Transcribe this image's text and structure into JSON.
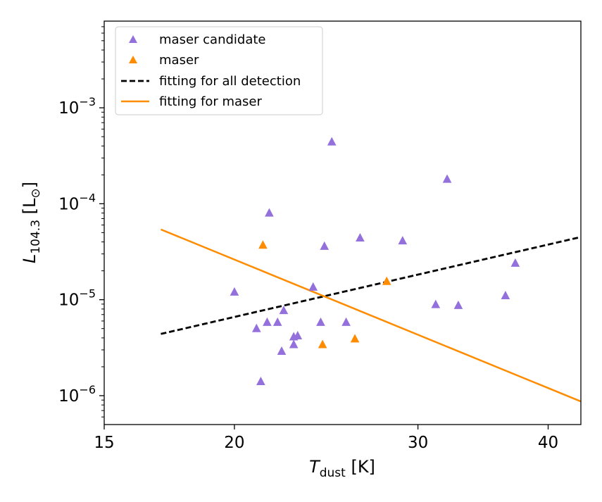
{
  "chart_data": {
    "type": "scatter",
    "x_scale": "log",
    "y_scale": "log",
    "xlim": [
      15,
      43
    ],
    "ylim": [
      5e-07,
      0.008
    ],
    "xlabel": {
      "main": "T",
      "sub": "dust",
      "unit": " [K]"
    },
    "ylabel": {
      "main": "L",
      "sub": "104.3",
      "unit_open": " [L",
      "unit_sub": "⊙",
      "unit_close": "]"
    },
    "x_ticks": [
      {
        "value": 15,
        "label": "15"
      },
      {
        "value": 20,
        "label": "20"
      },
      {
        "value": 30,
        "label": "30"
      },
      {
        "value": 40,
        "label": "40"
      }
    ],
    "y_ticks": [
      {
        "value": 1e-06,
        "base": "10",
        "exp": "−6"
      },
      {
        "value": 1e-05,
        "base": "10",
        "exp": "−5"
      },
      {
        "value": 0.0001,
        "base": "10",
        "exp": "−4"
      },
      {
        "value": 0.001,
        "base": "10",
        "exp": "−3"
      }
    ],
    "series": [
      {
        "name": "maser candidate",
        "kind": "scatter",
        "color": "#9370db",
        "marker": "triangle",
        "points": [
          [
            20.0,
            1.2e-05
          ],
          [
            21.0,
            5e-06
          ],
          [
            21.2,
            1.4e-06
          ],
          [
            21.5,
            5.8e-06
          ],
          [
            21.6,
            8e-05
          ],
          [
            22.0,
            5.8e-06
          ],
          [
            22.2,
            2.9e-06
          ],
          [
            22.3,
            7.7e-06
          ],
          [
            22.8,
            3.4e-06
          ],
          [
            22.8,
            4.1e-06
          ],
          [
            23.0,
            4.2e-06
          ],
          [
            23.8,
            1.35e-05
          ],
          [
            24.2,
            5.8e-06
          ],
          [
            24.4,
            3.6e-05
          ],
          [
            24.8,
            0.00044
          ],
          [
            25.6,
            5.8e-06
          ],
          [
            26.4,
            4.4e-05
          ],
          [
            29.0,
            4.1e-05
          ],
          [
            31.2,
            8.9e-06
          ],
          [
            32.0,
            0.00018
          ],
          [
            32.8,
            8.7e-06
          ],
          [
            36.4,
            1.1e-05
          ],
          [
            37.2,
            2.4e-05
          ]
        ]
      },
      {
        "name": "maser",
        "kind": "scatter",
        "color": "#ff8c00",
        "marker": "triangle",
        "points": [
          [
            21.3,
            3.7e-05
          ],
          [
            24.3,
            3.4e-06
          ],
          [
            26.1,
            3.9e-06
          ],
          [
            28.0,
            1.55e-05
          ]
        ]
      },
      {
        "name": "fitting for all detection",
        "kind": "line",
        "color": "#000000",
        "dash": "dashed",
        "points": [
          [
            17.0,
            4.4e-06
          ],
          [
            43.0,
            4.5e-05
          ]
        ]
      },
      {
        "name": "fitting for maser",
        "kind": "line",
        "color": "#ff8c00",
        "dash": "solid",
        "points": [
          [
            17.0,
            5.4e-05
          ],
          [
            43.0,
            8.7e-07
          ]
        ]
      }
    ],
    "legend": {
      "placement": "top-left",
      "entries": [
        {
          "label": "maser candidate"
        },
        {
          "label": "maser"
        },
        {
          "label": "fitting for all detection"
        },
        {
          "label": "fitting for maser"
        }
      ]
    }
  }
}
